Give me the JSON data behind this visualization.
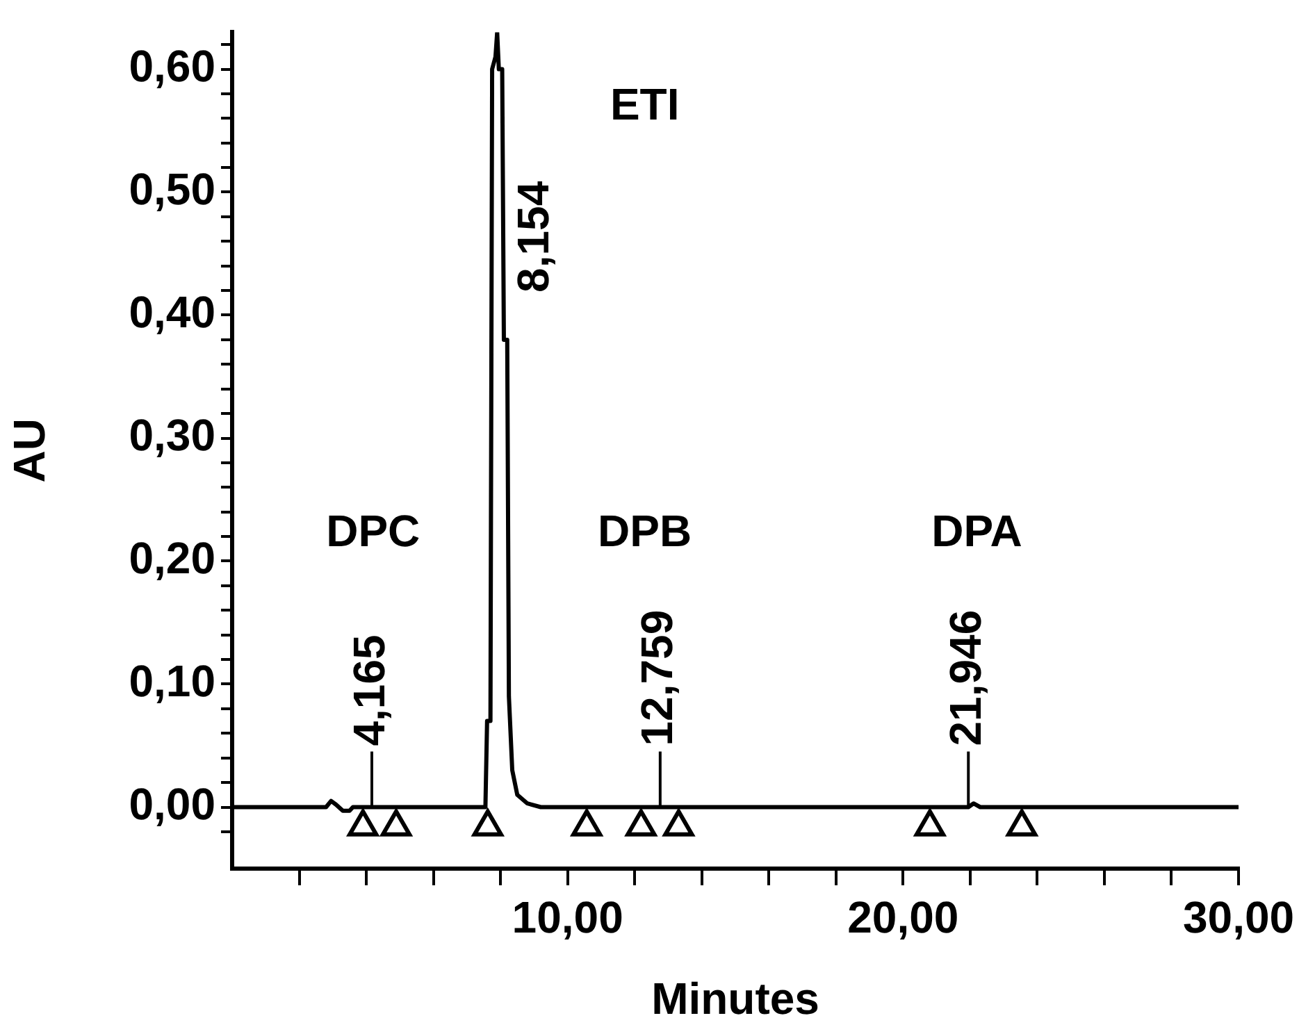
{
  "chart_data": {
    "type": "line",
    "xlabel": "Minutes",
    "ylabel": "AU",
    "xlim": [
      0,
      30
    ],
    "ylim": [
      -0.05,
      0.63
    ],
    "xticks": [
      {
        "value": 2,
        "label": null
      },
      {
        "value": 4,
        "label": null
      },
      {
        "value": 6,
        "label": null
      },
      {
        "value": 8,
        "label": null
      },
      {
        "value": 10,
        "label": "10,00"
      },
      {
        "value": 12,
        "label": null
      },
      {
        "value": 14,
        "label": null
      },
      {
        "value": 16,
        "label": null
      },
      {
        "value": 18,
        "label": null
      },
      {
        "value": 20,
        "label": "20,00"
      },
      {
        "value": 22,
        "label": null
      },
      {
        "value": 24,
        "label": null
      },
      {
        "value": 26,
        "label": null
      },
      {
        "value": 28,
        "label": null
      },
      {
        "value": 30,
        "label": "30,00"
      }
    ],
    "yticks": [
      {
        "value": -0.02,
        "label": null
      },
      {
        "value": 0,
        "label": "0,00"
      },
      {
        "value": 0.02,
        "label": null
      },
      {
        "value": 0.04,
        "label": null
      },
      {
        "value": 0.06,
        "label": null
      },
      {
        "value": 0.08,
        "label": null
      },
      {
        "value": 0.1,
        "label": "0,10"
      },
      {
        "value": 0.12,
        "label": null
      },
      {
        "value": 0.14,
        "label": null
      },
      {
        "value": 0.16,
        "label": null
      },
      {
        "value": 0.18,
        "label": null
      },
      {
        "value": 0.2,
        "label": "0,20"
      },
      {
        "value": 0.22,
        "label": null
      },
      {
        "value": 0.24,
        "label": null
      },
      {
        "value": 0.26,
        "label": null
      },
      {
        "value": 0.28,
        "label": null
      },
      {
        "value": 0.3,
        "label": "0,30"
      },
      {
        "value": 0.32,
        "label": null
      },
      {
        "value": 0.34,
        "label": null
      },
      {
        "value": 0.36,
        "label": null
      },
      {
        "value": 0.38,
        "label": null
      },
      {
        "value": 0.4,
        "label": "0,40"
      },
      {
        "value": 0.42,
        "label": null
      },
      {
        "value": 0.44,
        "label": null
      },
      {
        "value": 0.46,
        "label": null
      },
      {
        "value": 0.48,
        "label": null
      },
      {
        "value": 0.5,
        "label": "0,50"
      },
      {
        "value": 0.52,
        "label": null
      },
      {
        "value": 0.54,
        "label": null
      },
      {
        "value": 0.56,
        "label": null
      },
      {
        "value": 0.58,
        "label": null
      },
      {
        "value": 0.6,
        "label": "0,60"
      },
      {
        "value": 0.62,
        "label": null
      }
    ],
    "grid": false,
    "legend": false,
    "series": [
      {
        "type": "line",
        "color": "#000000",
        "marker": "none",
        "x": [
          0,
          2.8,
          2.95,
          3.1,
          3.3,
          3.5,
          3.6,
          4.165,
          7.55,
          7.6,
          7.7,
          7.75,
          7.85,
          7.9,
          7.95,
          8.05,
          8.1,
          8.154,
          8.2,
          8.25,
          8.35,
          8.5,
          8.8,
          9.2,
          12.759,
          21.946,
          22.1,
          22.3,
          30
        ],
        "values": [
          0,
          0,
          0.005,
          0.002,
          -0.003,
          -0.003,
          0,
          0,
          0,
          0.07,
          0.07,
          0.6,
          0.61,
          0.63,
          0.6,
          0.6,
          0.38,
          0.38,
          0.38,
          0.09,
          0.03,
          0.01,
          0.003,
          0,
          0,
          0,
          0.003,
          0,
          0
        ]
      },
      {
        "type": "scatter",
        "color": "#000000",
        "marker": "triangle",
        "x": [
          3.9,
          4.89,
          7.62,
          10.57,
          12.19,
          13.31,
          20.8,
          23.54
        ],
        "values": [
          -0.016,
          -0.016,
          -0.016,
          -0.016,
          -0.016,
          -0.016,
          -0.016,
          -0.016
        ]
      }
    ],
    "annotations": [
      "ETI",
      "DPC",
      "DPB",
      "DPA",
      {
        "text": "4,165",
        "x": 4.165,
        "y": 0
      },
      {
        "text": "8,154",
        "x": 8.154,
        "y": 0.38
      },
      {
        "text": "12,759",
        "x": 12.759,
        "y": 0
      },
      {
        "text": "21,946",
        "x": 21.946,
        "y": 0
      }
    ]
  }
}
